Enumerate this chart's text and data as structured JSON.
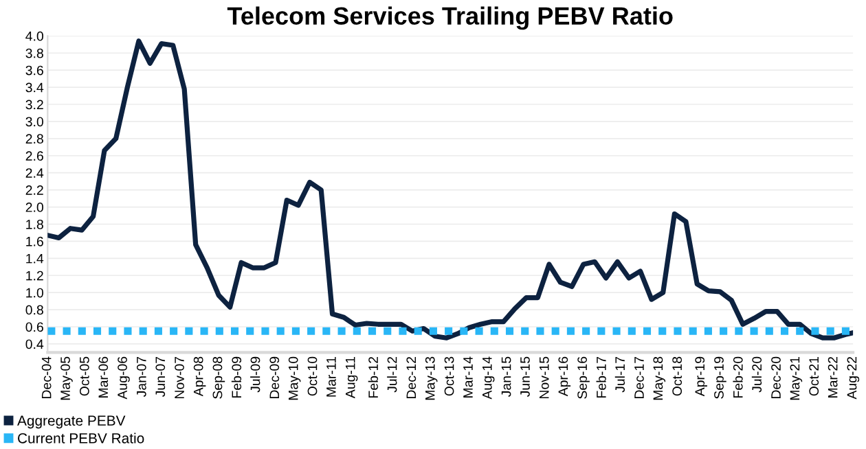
{
  "chart_data": {
    "type": "line",
    "title": "Telecom Services Trailing PEBV Ratio",
    "x": [
      "2004-12",
      "2005-03",
      "2005-06",
      "2005-09",
      "2005-12",
      "2006-03",
      "2006-06",
      "2006-09",
      "2006-12",
      "2007-03",
      "2007-06",
      "2007-09",
      "2007-12",
      "2008-03",
      "2008-06",
      "2008-09",
      "2008-12",
      "2009-03",
      "2009-06",
      "2009-09",
      "2009-12",
      "2010-03",
      "2010-06",
      "2010-09",
      "2010-12",
      "2011-03",
      "2011-06",
      "2011-09",
      "2011-12",
      "2012-03",
      "2012-06",
      "2012-09",
      "2012-12",
      "2013-03",
      "2013-06",
      "2013-09",
      "2013-12",
      "2014-03",
      "2014-06",
      "2014-09",
      "2014-12",
      "2015-03",
      "2015-06",
      "2015-09",
      "2015-12",
      "2016-03",
      "2016-06",
      "2016-09",
      "2016-12",
      "2017-03",
      "2017-06",
      "2017-09",
      "2017-12",
      "2018-03",
      "2018-06",
      "2018-09",
      "2018-12",
      "2019-03",
      "2019-06",
      "2019-09",
      "2019-12",
      "2020-03",
      "2020-06",
      "2020-09",
      "2020-12",
      "2021-03",
      "2021-06",
      "2021-09",
      "2021-12",
      "2022-03",
      "2022-06",
      "2022-08"
    ],
    "series": [
      {
        "name": "Aggregate PEBV",
        "color": "#0d2240",
        "values": [
          1.67,
          1.64,
          1.75,
          1.73,
          1.89,
          2.66,
          2.8,
          3.4,
          3.94,
          3.68,
          3.91,
          3.89,
          3.38,
          1.56,
          1.29,
          0.97,
          0.83,
          1.35,
          1.29,
          1.29,
          1.35,
          2.08,
          2.02,
          2.29,
          2.2,
          0.75,
          0.71,
          0.62,
          0.64,
          0.63,
          0.63,
          0.63,
          0.55,
          0.58,
          0.49,
          0.47,
          0.52,
          0.59,
          0.63,
          0.66,
          0.66,
          0.81,
          0.94,
          0.94,
          1.33,
          1.12,
          1.07,
          1.33,
          1.36,
          1.17,
          1.36,
          1.17,
          1.25,
          0.92,
          1.0,
          1.92,
          1.83,
          1.1,
          1.02,
          1.01,
          0.91,
          0.63,
          0.7,
          0.78,
          0.78,
          0.63,
          0.63,
          0.52,
          0.47,
          0.47,
          0.51,
          0.53
        ]
      }
    ],
    "ref_lines": [
      {
        "axis": "y",
        "value": 0.55,
        "label": "Current PEBV Ratio",
        "color": "#29b6f6",
        "line_style": "dotted"
      }
    ],
    "xlim": [
      "2004-12",
      "2022-08"
    ],
    "xticks": [
      {
        "value": "2004-12",
        "label": "Dec-04"
      },
      {
        "value": "2005-05",
        "label": "May-05"
      },
      {
        "value": "2005-10",
        "label": "Oct-05"
      },
      {
        "value": "2006-03",
        "label": "Mar-06"
      },
      {
        "value": "2006-08",
        "label": "Aug-06"
      },
      {
        "value": "2007-01",
        "label": "Jan-07"
      },
      {
        "value": "2007-06",
        "label": "Jun-07"
      },
      {
        "value": "2007-11",
        "label": "Nov-07"
      },
      {
        "value": "2008-04",
        "label": "Apr-08"
      },
      {
        "value": "2008-09",
        "label": "Sep-08"
      },
      {
        "value": "2009-02",
        "label": "Feb-09"
      },
      {
        "value": "2009-07",
        "label": "Jul-09"
      },
      {
        "value": "2009-12",
        "label": "Dec-09"
      },
      {
        "value": "2010-05",
        "label": "May-10"
      },
      {
        "value": "2010-10",
        "label": "Oct-10"
      },
      {
        "value": "2011-03",
        "label": "Mar-11"
      },
      {
        "value": "2011-08",
        "label": "Aug-11"
      },
      {
        "value": "2012-02",
        "label": "Feb-12"
      },
      {
        "value": "2012-07",
        "label": "Jul-12"
      },
      {
        "value": "2012-12",
        "label": "Dec-12"
      },
      {
        "value": "2013-05",
        "label": "May-13"
      },
      {
        "value": "2013-10",
        "label": "Oct-13"
      },
      {
        "value": "2014-03",
        "label": "Mar-14"
      },
      {
        "value": "2014-08",
        "label": "Aug-14"
      },
      {
        "value": "2015-01",
        "label": "Jan-15"
      },
      {
        "value": "2015-06",
        "label": "Jun-15"
      },
      {
        "value": "2015-11",
        "label": "Nov-15"
      },
      {
        "value": "2016-04",
        "label": "Apr-16"
      },
      {
        "value": "2016-09",
        "label": "Sep-16"
      },
      {
        "value": "2017-02",
        "label": "Feb-17"
      },
      {
        "value": "2017-07",
        "label": "Jul-17"
      },
      {
        "value": "2017-12",
        "label": "Dec-17"
      },
      {
        "value": "2018-05",
        "label": "May-18"
      },
      {
        "value": "2018-10",
        "label": "Oct-18"
      },
      {
        "value": "2019-04",
        "label": "Apr-19"
      },
      {
        "value": "2019-09",
        "label": "Sep-19"
      },
      {
        "value": "2020-02",
        "label": "Feb-20"
      },
      {
        "value": "2020-07",
        "label": "Jul-20"
      },
      {
        "value": "2020-12",
        "label": "Dec-20"
      },
      {
        "value": "2021-05",
        "label": "May-21"
      },
      {
        "value": "2021-10",
        "label": "Oct-21"
      },
      {
        "value": "2022-03",
        "label": "Mar-22"
      },
      {
        "value": "2022-08",
        "label": "Aug-22"
      }
    ],
    "ylim": [
      0.3,
      4.0
    ],
    "yticks": [
      0.4,
      0.6,
      0.8,
      {
        "value": 1,
        "label": "1.0"
      },
      1.2,
      1.4,
      1.6,
      1.8,
      {
        "value": 2,
        "label": "2.0"
      },
      2.2,
      2.4,
      2.6,
      2.8,
      {
        "value": 3,
        "label": "3.0"
      },
      3.2,
      3.4,
      3.6,
      3.8,
      {
        "value": 4,
        "label": "4.0"
      }
    ],
    "grid": "y",
    "legend": "bottom left",
    "marker": "none",
    "line_style": "solid"
  }
}
